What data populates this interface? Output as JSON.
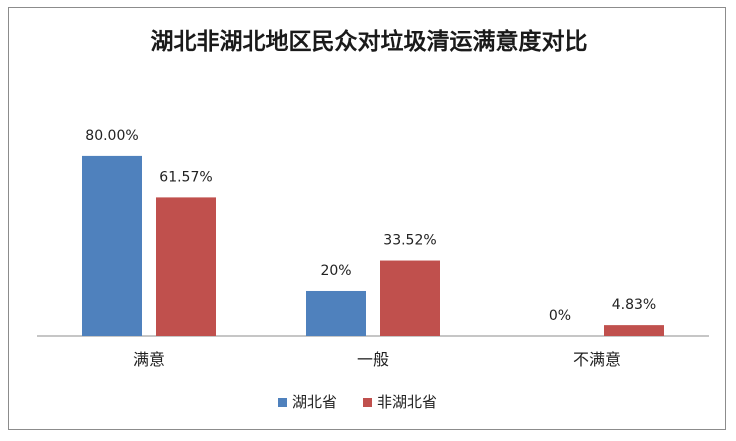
{
  "chart_data": {
    "type": "bar",
    "title": "湖北非湖北地区民众对垃圾清运满意度对比",
    "categories": [
      "满意",
      "一般",
      "不满意"
    ],
    "series": [
      {
        "name": "湖北省",
        "color": "#4f81bd",
        "values": [
          80.0,
          20,
          0
        ],
        "labels": [
          "80.00%",
          "20%",
          "0%"
        ]
      },
      {
        "name": "非湖北省",
        "color": "#c0504d",
        "values": [
          61.57,
          33.52,
          4.83
        ],
        "labels": [
          "61.57%",
          "33.52%",
          "4.83%"
        ]
      }
    ],
    "ylim": [
      0,
      100
    ],
    "grid": false,
    "legend_position": "bottom",
    "xlabel": "",
    "ylabel": ""
  }
}
